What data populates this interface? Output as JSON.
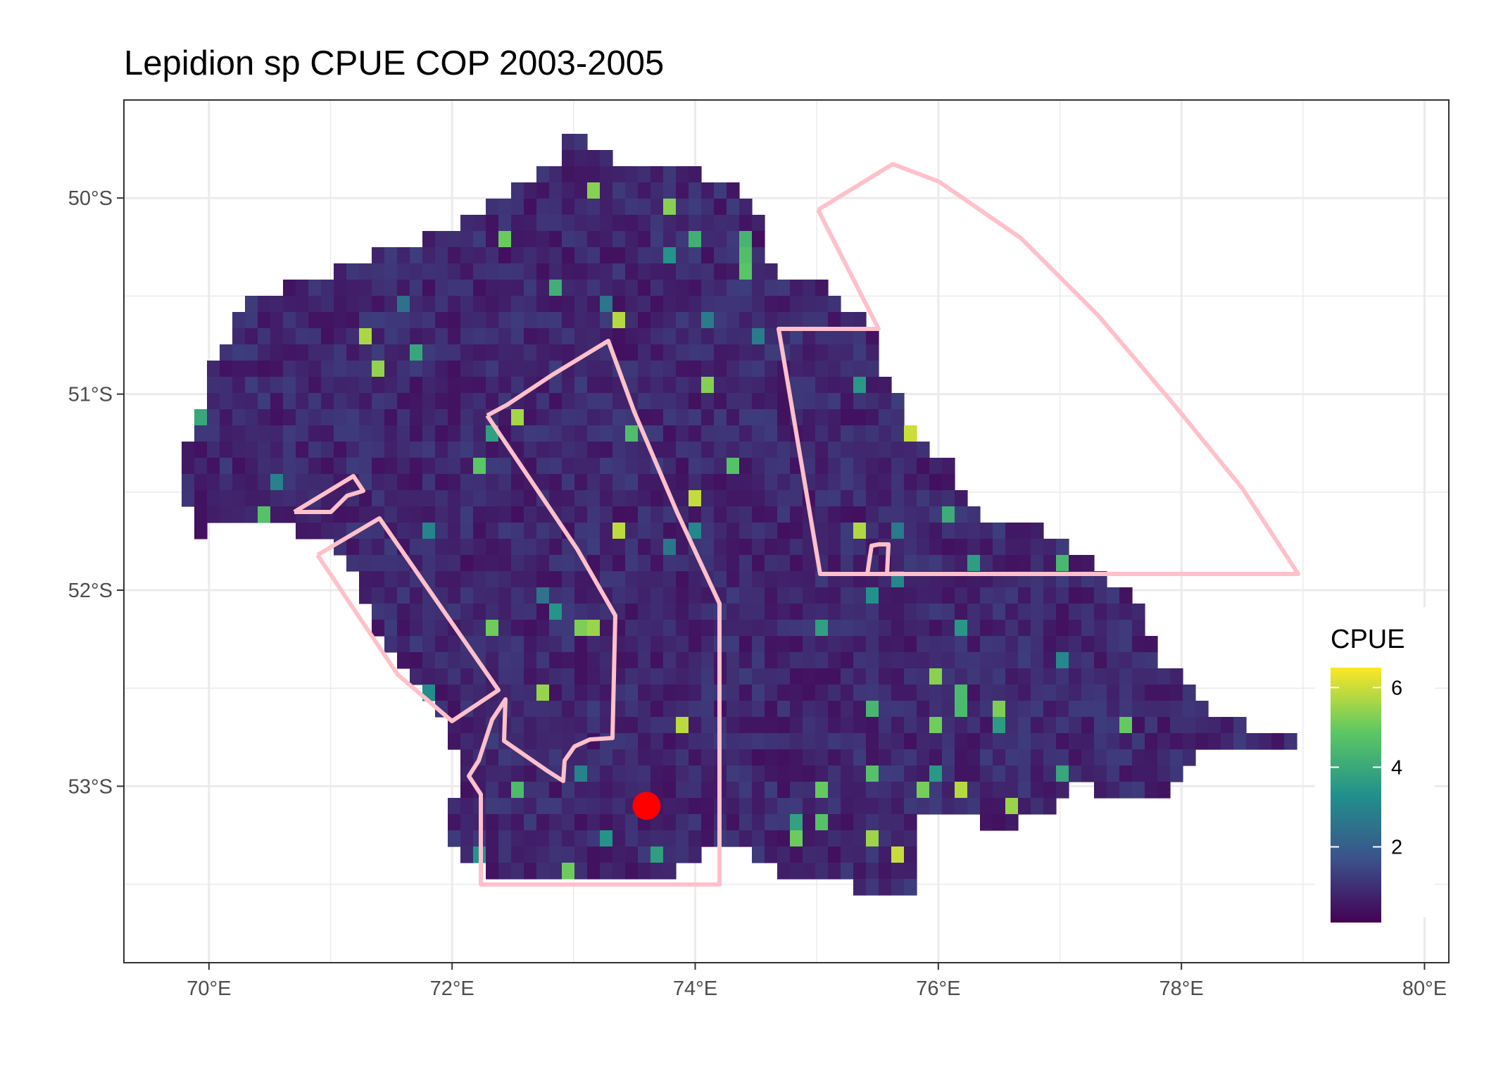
{
  "map": {
    "title": "Lepidion sp  CPUE COP 2003-2005",
    "x_ticks": [
      "70°E",
      "72°E",
      "74°E",
      "76°E",
      "78°E",
      "80°E"
    ],
    "y_ticks": [
      "50°S",
      "51°S",
      "52°S",
      "53°S"
    ],
    "x_tick_values": [
      70,
      72,
      74,
      76,
      78,
      80
    ],
    "y_tick_values": [
      -50,
      -51,
      -52,
      -53
    ],
    "xlim": [
      69.3,
      80.2
    ],
    "ylim": [
      -53.9,
      -49.5
    ],
    "grid": true,
    "legend": {
      "title": "CPUE",
      "ticks": [
        "2",
        "4",
        "6"
      ],
      "tick_values": [
        2,
        4,
        6
      ],
      "range": [
        0.1,
        6.5
      ],
      "colors": [
        "#440154",
        "#3b528b",
        "#21908c",
        "#5dc863",
        "#fde725"
      ],
      "placement": "right"
    },
    "polygon_color": "#ffc0cb",
    "point_color": "#ff0000",
    "point": {
      "lon": 73.6,
      "lat": -53.1
    }
  }
}
